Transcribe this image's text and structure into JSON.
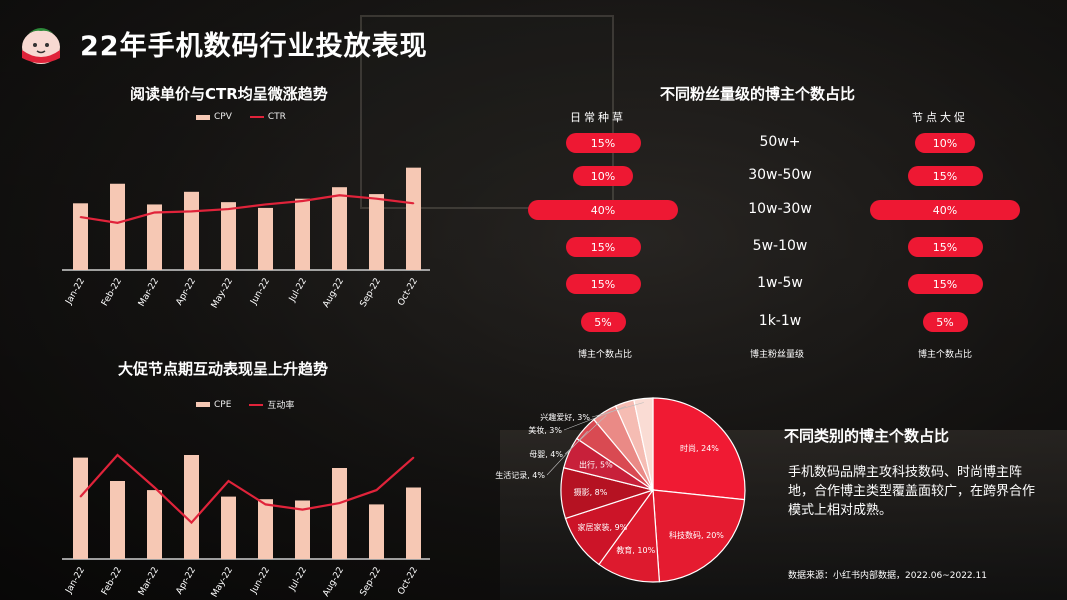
{
  "title": "22年手机数码行业投放表现",
  "chart1": {
    "title": "阅读单价与CTR均呈微涨趋势",
    "chart_data": {
      "type": "bar",
      "categories": [
        "Jan-22",
        "Feb-22",
        "Mar-22",
        "Apr-22",
        "May-22",
        "Jun-22",
        "Jul-22",
        "Aug-22",
        "Sep-22",
        "Oct-22"
      ],
      "series": [
        {
          "name": "CPV",
          "kind": "bar",
          "values": [
            58,
            75,
            57,
            68,
            59,
            54,
            62,
            72,
            66,
            89
          ]
        },
        {
          "name": "CTR",
          "kind": "line",
          "values": [
            46,
            41,
            50,
            51,
            53,
            57,
            60,
            65,
            62,
            58
          ]
        }
      ],
      "ylim": [
        0,
        100
      ],
      "bar_color": "#f6c8b4",
      "line_color": "#e0233a"
    }
  },
  "chart2": {
    "title": "大促节点期互动表现呈上升趋势",
    "chart_data": {
      "type": "bar",
      "categories": [
        "Jan-22",
        "Feb-22",
        "Mar-22",
        "Apr-22",
        "May-22",
        "Jun-22",
        "Jul-22",
        "Aug-22",
        "Sep-22",
        "Oct-22"
      ],
      "series": [
        {
          "name": "CPE",
          "kind": "bar",
          "values": [
            78,
            60,
            53,
            80,
            48,
            46,
            45,
            70,
            42,
            55
          ]
        },
        {
          "name": "互动率",
          "kind": "line",
          "values": [
            48,
            80,
            55,
            28,
            60,
            42,
            38,
            43,
            53,
            78
          ]
        }
      ],
      "ylim": [
        0,
        100
      ],
      "bar_color": "#f6c8b4",
      "line_color": "#e0233a"
    }
  },
  "fans": {
    "title": "不同粉丝量级的博主个数占比",
    "left_header": "日常种草",
    "right_header": "节点大促",
    "tiers": [
      "50w+",
      "30w-50w",
      "10w-30w",
      "5w-10w",
      "1w-5w",
      "1k-1w"
    ],
    "daily": [
      15,
      10,
      40,
      15,
      15,
      5
    ],
    "promo": [
      10,
      15,
      40,
      15,
      15,
      5
    ],
    "daily_labels": [
      "15%",
      "10%",
      "40%",
      "15%",
      "15%",
      "5%"
    ],
    "promo_labels": [
      "10%",
      "15%",
      "40%",
      "15%",
      "15%",
      "5%"
    ],
    "left_footer": "博主个数占比",
    "mid_footer": "博主粉丝量级",
    "right_footer": "博主个数占比",
    "pill_color": "#ee1833"
  },
  "pie": {
    "title": "不同类别的博主个数占比",
    "chart_data": {
      "type": "pie",
      "slices": [
        {
          "label": "时尚, 24%",
          "value": 24,
          "color": "#f01a33"
        },
        {
          "label": "科技数码, 20%",
          "value": 20,
          "color": "#e51b30"
        },
        {
          "label": "教育, 10%",
          "value": 10,
          "color": "#dd1a2e"
        },
        {
          "label": "家居家装, 9%",
          "value": 9,
          "color": "#cc1428"
        },
        {
          "label": "摄影, 8%",
          "value": 8,
          "color": "#b51222"
        },
        {
          "label": "出行, 5%",
          "value": 5,
          "color": "#c8203a"
        },
        {
          "label": "生活记录, 4%",
          "value": 4,
          "color": "#d94a52"
        },
        {
          "label": "母婴, 4%",
          "value": 4,
          "color": "#ea8a86"
        },
        {
          "label": "美妆, 3%",
          "value": 3,
          "color": "#f5bcb3"
        },
        {
          "label": "兴趣爱好, 3%",
          "value": 3,
          "color": "#fadcd4"
        }
      ]
    }
  },
  "description": "手机数码品牌主攻科技数码、时尚博主阵地，合作博主类型覆盖面较广，在跨界合作模式上相对成熟。",
  "source": "数据来源：小红书内部数据，2022.06~2022.11"
}
